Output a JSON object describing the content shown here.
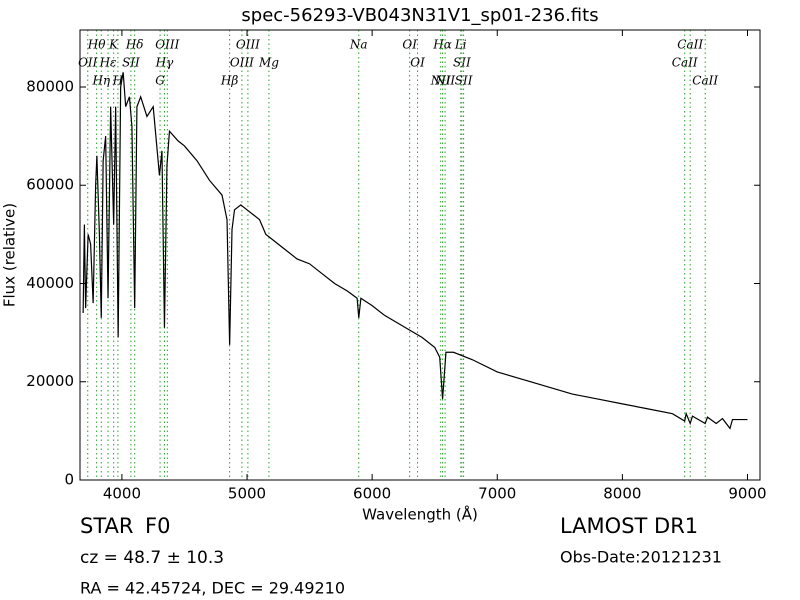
{
  "chart_data": {
    "type": "line",
    "title": "spec-56293-VB043N31V1_sp01-236.fits",
    "xlabel": "Wavelength (Å)",
    "ylabel": "Flux (relative)",
    "color": "#000000",
    "line_color": "#2ca02c",
    "grid": false,
    "xlim": [
      3665,
      9100
    ],
    "ylim": [
      0,
      91600
    ],
    "xticks": [
      4000,
      5000,
      6000,
      7000,
      8000,
      9000
    ],
    "yticks": [
      0,
      20000,
      40000,
      60000,
      80000
    ],
    "x": [
      3690,
      3700,
      3710,
      3730,
      3750,
      3770,
      3790,
      3800,
      3820,
      3835,
      3850,
      3870,
      3889,
      3910,
      3934,
      3950,
      3970,
      3990,
      4010,
      4030,
      4060,
      4080,
      4102,
      4120,
      4150,
      4200,
      4250,
      4300,
      4320,
      4340,
      4360,
      4380,
      4450,
      4500,
      4600,
      4700,
      4800,
      4840,
      4861,
      4880,
      4900,
      4950,
      5000,
      5100,
      5150,
      5200,
      5300,
      5400,
      5500,
      5600,
      5700,
      5800,
      5880,
      5893,
      5910,
      6000,
      6100,
      6200,
      6300,
      6400,
      6500,
      6540,
      6563,
      6590,
      6650,
      6800,
      7000,
      7200,
      7400,
      7600,
      7800,
      8000,
      8200,
      8400,
      8498,
      8510,
      8542,
      8560,
      8662,
      8680,
      8750,
      8800,
      8860,
      8880,
      9000
    ],
    "values": [
      34000,
      52000,
      35000,
      50000,
      48000,
      36000,
      60000,
      66000,
      50000,
      33000,
      65000,
      70000,
      37000,
      76000,
      52000,
      76000,
      29000,
      80000,
      83000,
      76000,
      78000,
      72000,
      35000,
      76000,
      78000,
      74000,
      76000,
      62000,
      67000,
      31000,
      64000,
      71000,
      69000,
      68000,
      65000,
      61000,
      58000,
      53000,
      27500,
      51000,
      55000,
      56000,
      55000,
      53000,
      50000,
      49000,
      47000,
      45000,
      44000,
      42000,
      40000,
      38500,
      37000,
      33000,
      37000,
      35500,
      33500,
      32000,
      30500,
      29000,
      27000,
      25000,
      16500,
      26000,
      26000,
      24500,
      22000,
      20500,
      19000,
      17500,
      16500,
      15500,
      14500,
      13500,
      12000,
      13500,
      11500,
      13000,
      11500,
      12800,
      11500,
      12500,
      10500,
      12300,
      12300
    ],
    "annotations": [
      {
        "text": "Hθ",
        "x": 3798
      },
      {
        "text": "K",
        "x": 3934
      },
      {
        "text": "Hδ",
        "x": 4102
      },
      {
        "text": "OIII",
        "x": 4363
      },
      {
        "text": "OIII",
        "x": 5007
      },
      {
        "text": "OI",
        "x": 6300
      },
      {
        "text": "Hα",
        "x": 6563
      },
      {
        "text": "SII",
        "x": 6717
      },
      {
        "text": "CaII",
        "x": 8542
      },
      {
        "text": "OII",
        "x": 3727
      },
      {
        "text": "Hε",
        "x": 3889
      },
      {
        "text": "SII",
        "x": 4072
      },
      {
        "text": "Hγ",
        "x": 4340
      },
      {
        "text": "OIII",
        "x": 4959
      },
      {
        "text": "Na",
        "x": 5893
      },
      {
        "text": "NII",
        "x": 6548
      },
      {
        "text": "Li",
        "x": 6708
      },
      {
        "text": "CaII",
        "x": 8498
      },
      {
        "text": "Hη",
        "x": 3835
      },
      {
        "text": "H",
        "x": 3968
      },
      {
        "text": "G",
        "x": 4305
      },
      {
        "text": "Hβ",
        "x": 4861
      },
      {
        "text": "Mg",
        "x": 5175
      },
      {
        "text": "OI",
        "x": 6363
      },
      {
        "text": "NII",
        "x": 6583
      },
      {
        "text": "SII",
        "x": 6731
      },
      {
        "text": "CaII",
        "x": 8662
      }
    ]
  },
  "footer": {
    "object_class": "STAR",
    "subclass": "F0",
    "survey": "LAMOST DR1",
    "redshift": "cz = 48.7 ± 10.3",
    "obs_date": "Obs-Date:20121231",
    "coords": "RA = 42.45724, DEC = 29.49210"
  }
}
